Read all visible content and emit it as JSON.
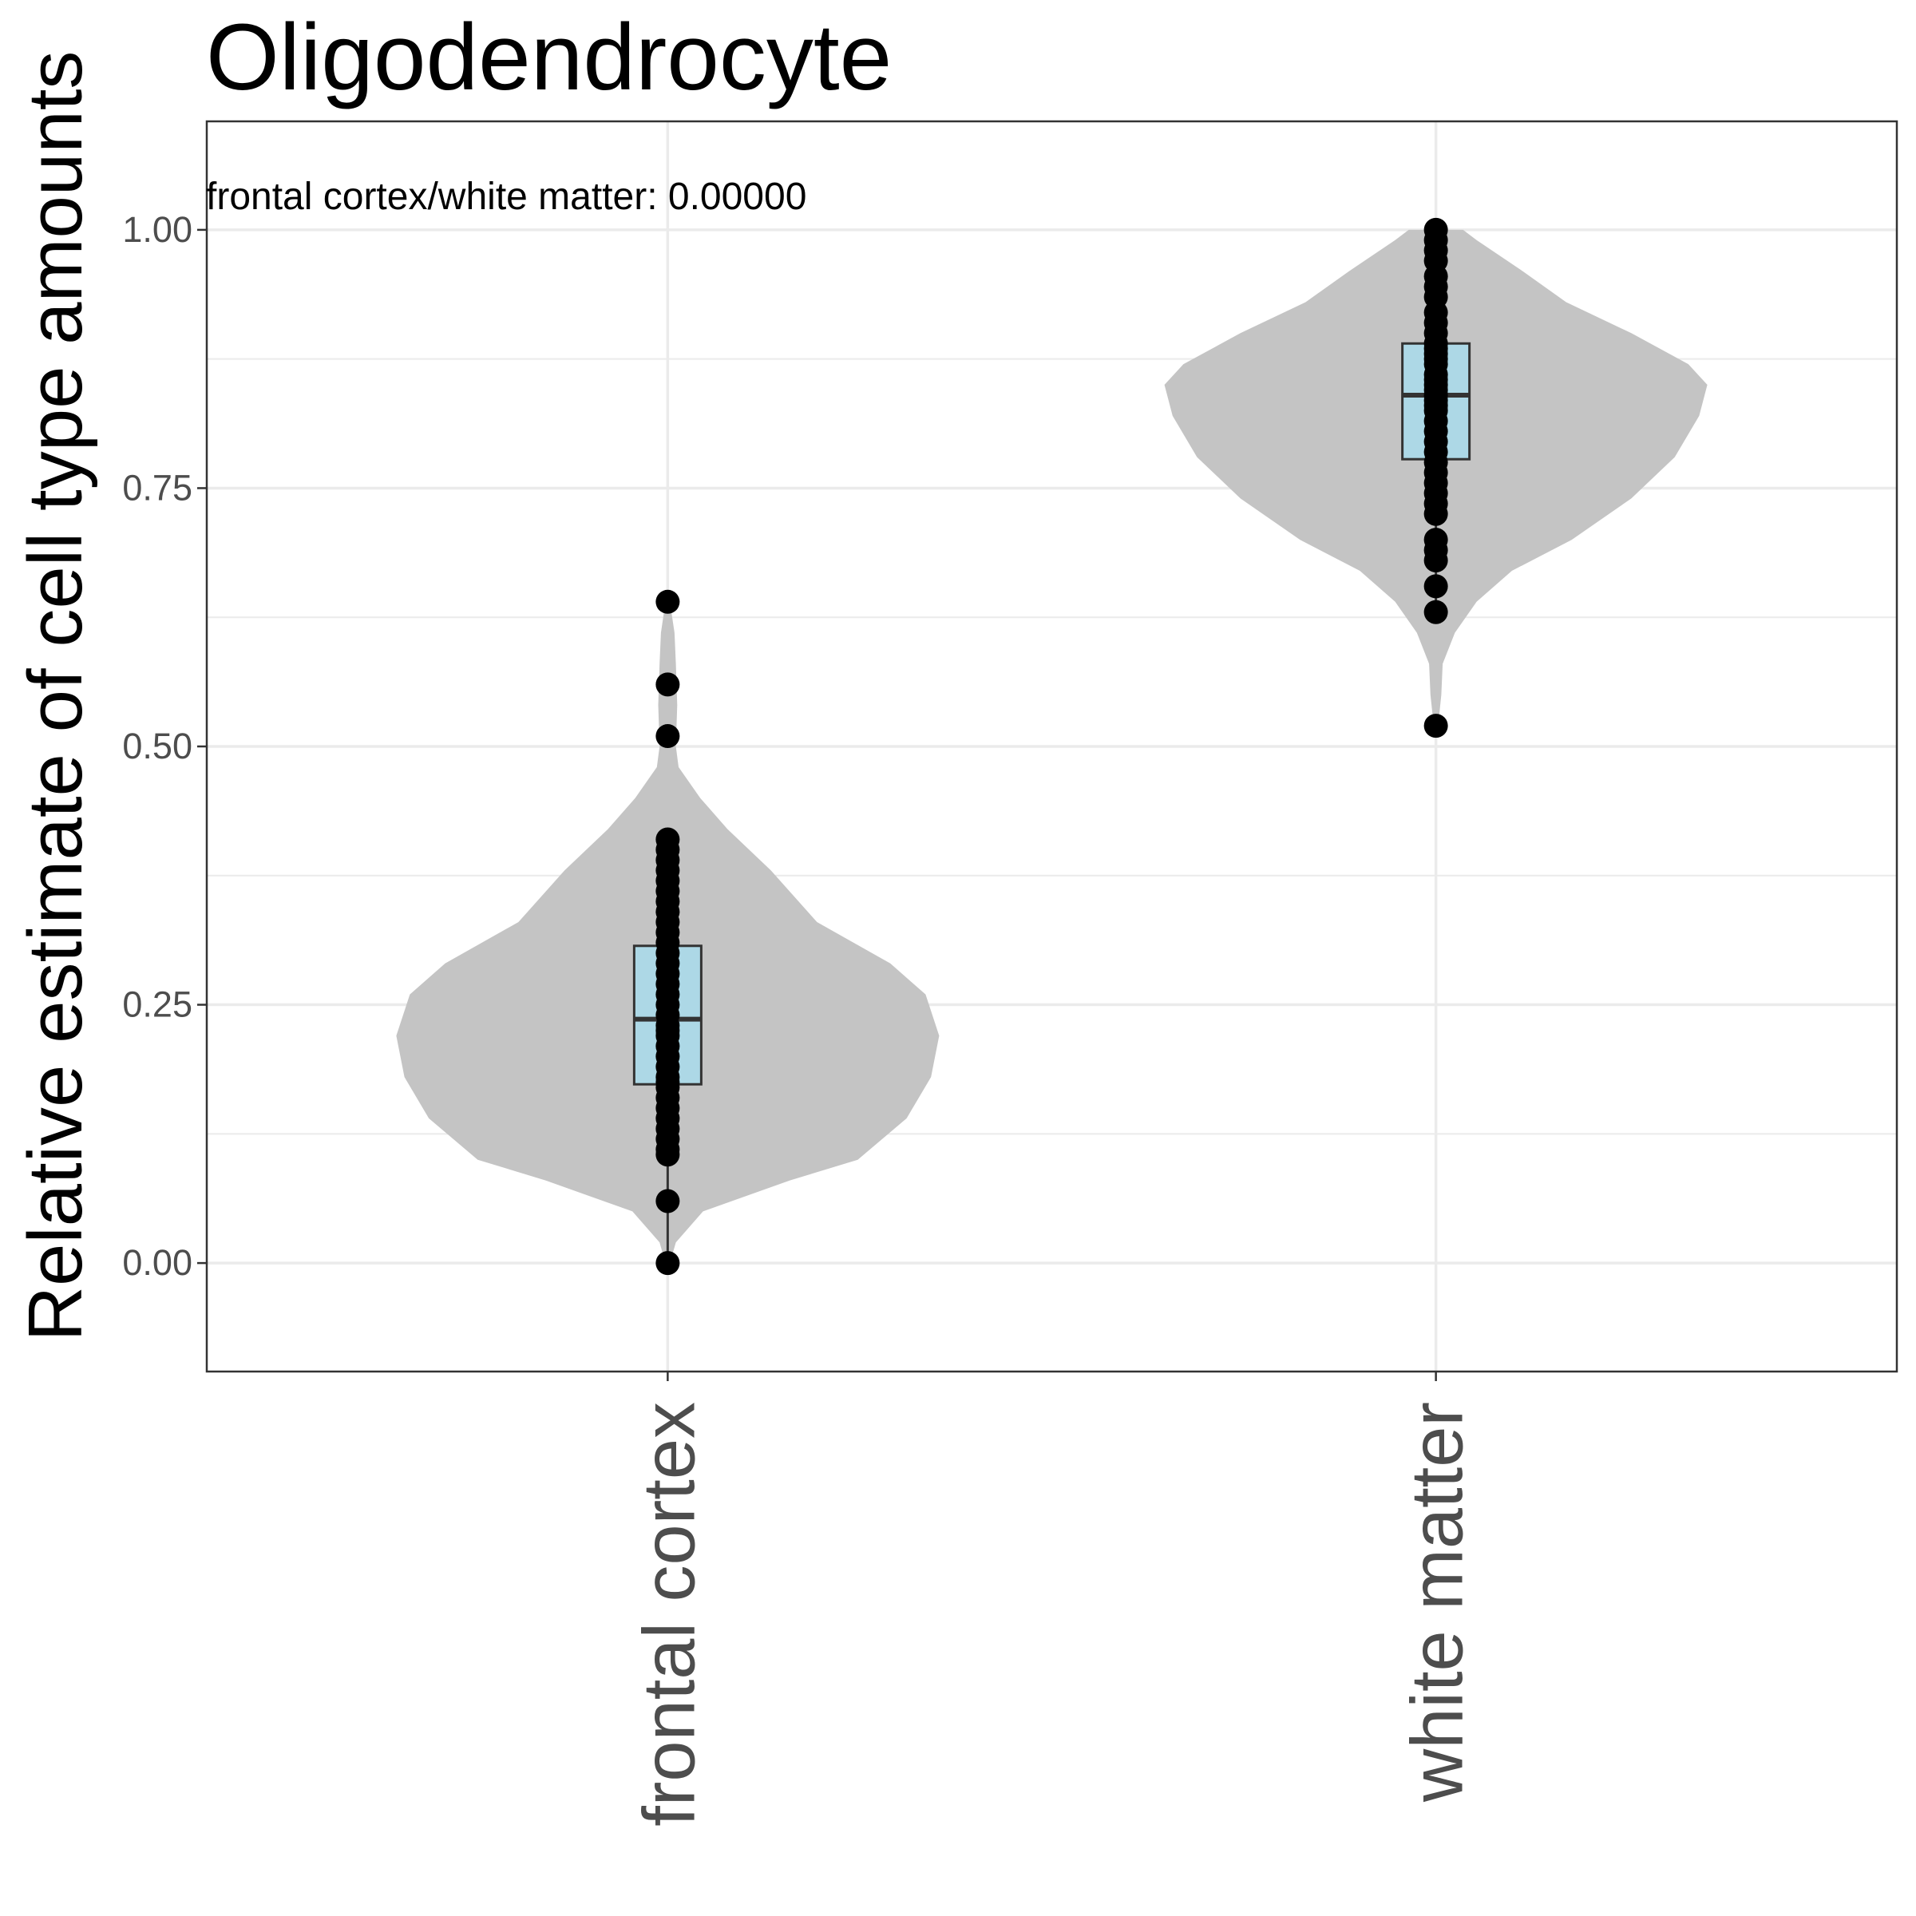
{
  "chart_data": {
    "type": "violin",
    "title": "Oligodendrocyte",
    "xlabel": "",
    "ylabel": "Relative estimate of cell type amounts",
    "ylim": [
      -0.105,
      1.105
    ],
    "yticks": [
      0.0,
      0.25,
      0.5,
      0.75,
      1.0
    ],
    "ytick_labels": [
      "0.00",
      "0.25",
      "0.50",
      "0.75",
      "1.00"
    ],
    "categories": [
      "frontal cortex",
      "white matter"
    ],
    "annotation": "frontal cortex/white matter: 0.00000",
    "grid": true,
    "colors": {
      "violin": "#c4c4c4",
      "box": "#add8e6",
      "points": "#000000",
      "grid": "#ebebeb",
      "frame": "#333333"
    },
    "series": [
      {
        "category": "frontal cortex",
        "box": {
          "q1": 0.173,
          "median": 0.236,
          "q3": 0.307,
          "whisker_low": 0.0,
          "whisker_high": 0.41
        },
        "violin_profile": [
          [
            0.0,
            0.008
          ],
          [
            0.02,
            0.03
          ],
          [
            0.05,
            0.13
          ],
          [
            0.08,
            0.45
          ],
          [
            0.1,
            0.7
          ],
          [
            0.14,
            0.88
          ],
          [
            0.18,
            0.97
          ],
          [
            0.22,
            1.0
          ],
          [
            0.26,
            0.95
          ],
          [
            0.29,
            0.82
          ],
          [
            0.33,
            0.55
          ],
          [
            0.38,
            0.38
          ],
          [
            0.42,
            0.22
          ],
          [
            0.45,
            0.12
          ],
          [
            0.48,
            0.04
          ],
          [
            0.5,
            0.03
          ],
          [
            0.54,
            0.035
          ],
          [
            0.58,
            0.03
          ],
          [
            0.61,
            0.025
          ],
          [
            0.64,
            0.008
          ]
        ],
        "points": [
          0.0,
          0.06,
          0.105,
          0.11,
          0.12,
          0.13,
          0.14,
          0.15,
          0.16,
          0.17,
          0.175,
          0.18,
          0.19,
          0.2,
          0.21,
          0.22,
          0.225,
          0.23,
          0.24,
          0.25,
          0.26,
          0.27,
          0.28,
          0.29,
          0.3,
          0.31,
          0.32,
          0.33,
          0.34,
          0.35,
          0.36,
          0.37,
          0.38,
          0.39,
          0.4,
          0.41,
          0.51,
          0.56,
          0.64
        ]
      },
      {
        "category": "white matter",
        "box": {
          "q1": 0.778,
          "median": 0.84,
          "q3": 0.89,
          "whisker_low": 0.63,
          "whisker_high": 1.0
        },
        "violin_profile": [
          [
            0.52,
            0.008
          ],
          [
            0.55,
            0.02
          ],
          [
            0.58,
            0.025
          ],
          [
            0.61,
            0.07
          ],
          [
            0.64,
            0.15
          ],
          [
            0.67,
            0.28
          ],
          [
            0.7,
            0.5
          ],
          [
            0.74,
            0.72
          ],
          [
            0.78,
            0.88
          ],
          [
            0.82,
            0.97
          ],
          [
            0.85,
            1.0
          ],
          [
            0.87,
            0.93
          ],
          [
            0.9,
            0.72
          ],
          [
            0.93,
            0.48
          ],
          [
            0.96,
            0.32
          ],
          [
            0.99,
            0.15
          ],
          [
            1.0,
            0.1
          ]
        ],
        "points": [
          0.52,
          0.63,
          0.655,
          0.68,
          0.69,
          0.7,
          0.725,
          0.735,
          0.745,
          0.755,
          0.765,
          0.775,
          0.785,
          0.795,
          0.805,
          0.815,
          0.825,
          0.83,
          0.835,
          0.84,
          0.845,
          0.85,
          0.855,
          0.86,
          0.87,
          0.875,
          0.88,
          0.885,
          0.89,
          0.9,
          0.91,
          0.92,
          0.935,
          0.945,
          0.955,
          0.97,
          0.98,
          0.99,
          1.0
        ]
      }
    ]
  }
}
